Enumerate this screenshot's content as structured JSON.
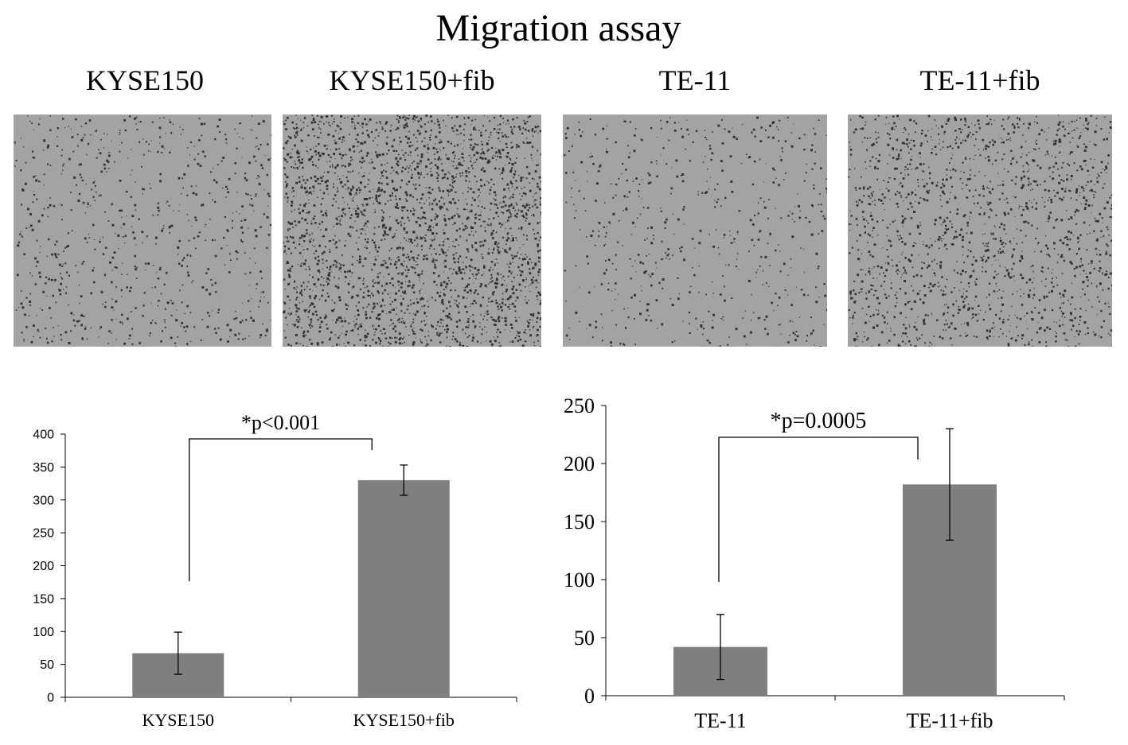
{
  "figure": {
    "title": "Migration assay",
    "panels": [
      {
        "label": "KYSE150",
        "density": 0.28
      },
      {
        "label": "KYSE150+fib",
        "density": 1.0
      },
      {
        "label": "TE-11",
        "density": 0.22
      },
      {
        "label": "TE-11+fib",
        "density": 0.6
      }
    ],
    "colors": {
      "bar": "#7f7f7f",
      "micrograph_bg": "#a3a3a3",
      "cell": "#1f1f1f"
    }
  },
  "chart_data": [
    {
      "type": "bar",
      "categories": [
        "KYSE150",
        "KYSE150+fib"
      ],
      "values": [
        67,
        330
      ],
      "errors": [
        32,
        23
      ],
      "ylim": [
        0,
        400
      ],
      "yticks": [
        "0",
        "50",
        "100",
        "150",
        "200",
        "250",
        "300",
        "350",
        "400"
      ],
      "annotation": "*p<0.001",
      "grid": false
    },
    {
      "type": "bar",
      "categories": [
        "TE-11",
        "TE-11+fib"
      ],
      "values": [
        42,
        182
      ],
      "errors": [
        28,
        48
      ],
      "ylim": [
        0,
        250
      ],
      "yticks": [
        "0",
        "50",
        "100",
        "150",
        "200",
        "250"
      ],
      "annotation": "*p=0.0005",
      "grid": false
    }
  ]
}
